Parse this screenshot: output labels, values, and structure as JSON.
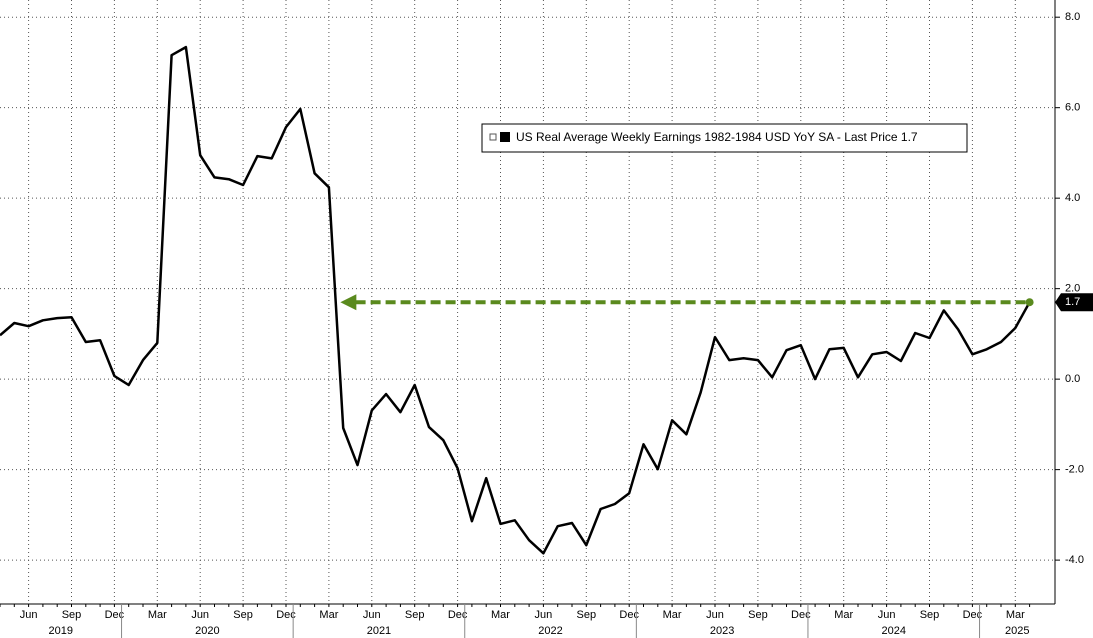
{
  "chart_data": {
    "type": "line",
    "legend_label": "US Real Average Weekly Earnings 1982-1984 USD YoY SA - Last Price 1.7",
    "last_label": "1.7",
    "categories": [
      null,
      null,
      "Jun",
      null,
      null,
      "Sep",
      null,
      null,
      "Dec",
      null,
      null,
      "Mar",
      null,
      null,
      "Jun",
      null,
      null,
      "Sep",
      null,
      null,
      "Dec",
      null,
      null,
      "Mar",
      null,
      null,
      "Jun",
      null,
      null,
      "Sep",
      null,
      null,
      "Dec",
      null,
      null,
      "Mar",
      null,
      null,
      "Jun",
      null,
      null,
      "Sep",
      null,
      null,
      "Dec",
      null,
      null,
      "Mar",
      null,
      null,
      "Jun",
      null,
      null,
      "Sep",
      null,
      null,
      "Dec",
      null,
      null,
      "Mar",
      null,
      null,
      "Jun",
      null,
      null,
      "Sep",
      null,
      null,
      "Dec",
      null,
      null,
      "Mar",
      null
    ],
    "years": [
      "2019",
      "2020",
      "2021",
      "2022",
      "2023",
      "2024",
      "2025"
    ],
    "series": [
      {
        "name": "US Real Average Weekly Earnings 1982-1984 USD YoY SA",
        "color": "#000000",
        "values": [
          0.97,
          1.24,
          1.17,
          1.3,
          1.35,
          1.37,
          0.82,
          0.86,
          0.07,
          -0.13,
          0.42,
          0.8,
          7.16,
          7.34,
          4.95,
          4.46,
          4.42,
          4.29,
          4.93,
          4.88,
          5.57,
          5.97,
          4.55,
          4.24,
          -1.08,
          -1.9,
          -0.69,
          -0.33,
          -0.73,
          -0.13,
          -1.06,
          -1.35,
          -1.97,
          -3.14,
          -2.19,
          -3.2,
          -3.12,
          -3.56,
          -3.85,
          -3.25,
          -3.18,
          -3.67,
          -2.87,
          -2.76,
          -2.52,
          -1.44,
          -1.99,
          -0.91,
          -1.22,
          -0.29,
          0.93,
          0.42,
          0.46,
          0.42,
          0.04,
          0.64,
          0.75,
          0.0,
          0.66,
          0.69,
          0.04,
          0.55,
          0.6,
          0.4,
          1.02,
          0.91,
          1.52,
          1.1,
          0.55,
          0.66,
          0.82,
          1.13,
          1.7
        ]
      }
    ],
    "ylim": [
      -4.97,
      8.38
    ],
    "yticks": [
      {
        "value": 8,
        "label": "8.0"
      },
      {
        "value": 6,
        "label": "6.0"
      },
      {
        "value": 4,
        "label": "4.0"
      },
      {
        "value": 2,
        "label": "2.0"
      },
      {
        "value": 0,
        "label": "0.0"
      },
      {
        "value": -2,
        "label": "-2.0"
      },
      {
        "value": -4,
        "label": "-4.0"
      }
    ],
    "grid": true,
    "annotation_color": "#5a8a1e"
  }
}
